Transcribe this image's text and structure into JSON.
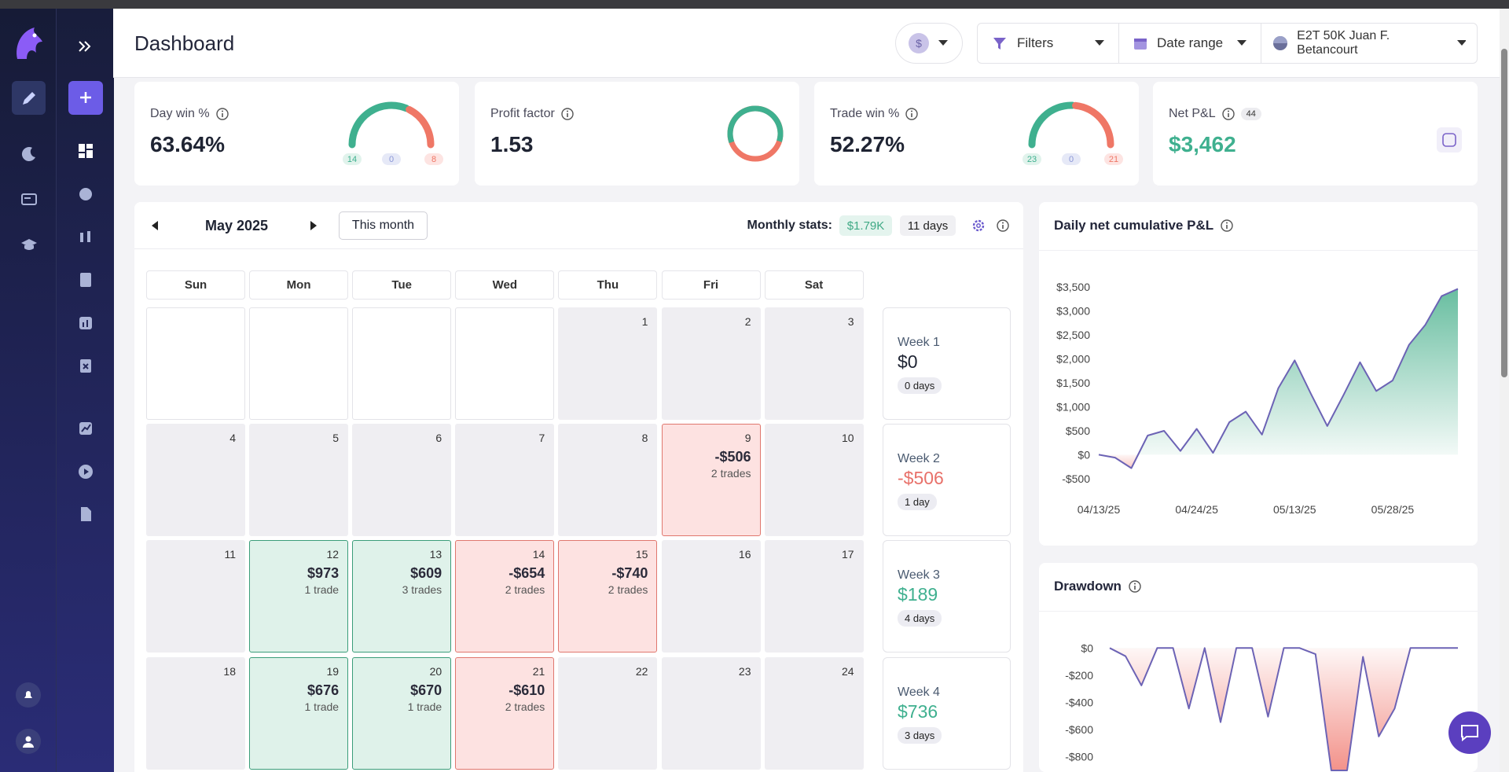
{
  "header": {
    "title": "Dashboard",
    "currency": "$",
    "filters": "Filters",
    "date_range": "Date range",
    "account": "E2T 50K Juan F. Betancourt"
  },
  "gauge_colors": [
    "#3fb08f",
    "#8a96d6",
    "#ef7766"
  ],
  "badge_colors": [
    "#e1f3ec",
    "#e6e9f7",
    "#fde4e2"
  ],
  "stats": [
    {
      "label": "Day win %",
      "value": "63.64%",
      "gauge": {
        "wins": 14,
        "breakeven": 0,
        "losses": 8
      }
    },
    {
      "label": "Profit factor",
      "value": 1.53
    },
    {
      "label": "Trade win %",
      "value": "52.27%",
      "gauge": {
        "wins": 23,
        "breakeven": 0,
        "losses": 21
      }
    },
    {
      "label": "Net P&L",
      "count": 44,
      "value": "$3,462",
      "value_color": "#3fb08f"
    }
  ],
  "calendar": {
    "month": "May 2025",
    "this_month": "This month",
    "stats_label": "Monthly stats:",
    "monthly_pnl": "$1.79K",
    "monthly_days": "11 days",
    "weekdays": [
      "Sun",
      "Mon",
      "Tue",
      "Wed",
      "Thu",
      "Fri",
      "Sat"
    ],
    "weeks": [
      {
        "days": [
          null,
          null,
          null,
          null,
          {
            "date": 1
          },
          {
            "date": 2
          },
          {
            "date": 3
          }
        ],
        "label": "Week 1",
        "pnl": "$0",
        "days_label": "0 days"
      },
      {
        "days": [
          {
            "date": 4
          },
          {
            "date": 5
          },
          {
            "date": 6
          },
          {
            "date": 7
          },
          {
            "date": 8
          },
          {
            "date": 9,
            "pnl": "-$506",
            "trades": "2 trades"
          },
          {
            "date": 10
          }
        ],
        "label": "Week 2",
        "pnl": "-$506",
        "days_label": "1 day"
      },
      {
        "days": [
          {
            "date": 11
          },
          {
            "date": 12,
            "pnl": "$973",
            "trades": "1 trade"
          },
          {
            "date": 13,
            "pnl": "$609",
            "trades": "3 trades"
          },
          {
            "date": 14,
            "pnl": "-$654",
            "trades": "2 trades"
          },
          {
            "date": 15,
            "pnl": "-$740",
            "trades": "2 trades"
          },
          {
            "date": 16
          },
          {
            "date": 17
          }
        ],
        "label": "Week 3",
        "pnl": "$189",
        "days_label": "4 days"
      },
      {
        "days": [
          {
            "date": 18
          },
          {
            "date": 19,
            "pnl": "$676",
            "trades": "1 trade"
          },
          {
            "date": 20,
            "pnl": "$670",
            "trades": "1 trade"
          },
          {
            "date": 21,
            "pnl": "-$610",
            "trades": "2 trades"
          },
          {
            "date": 22
          },
          {
            "date": 23
          },
          {
            "date": 24
          }
        ],
        "label": "Week 4",
        "pnl": "$736",
        "days_label": "3 days"
      }
    ]
  },
  "chart_data": [
    {
      "type": "area",
      "title": "Daily net cumulative P&L",
      "categories": [
        "04/13/25",
        null,
        null,
        null,
        null,
        null,
        "04/24/25",
        null,
        null,
        null,
        null,
        null,
        "05/13/25",
        null,
        null,
        null,
        null,
        null,
        "05/28/25",
        null,
        null,
        null,
        null
      ],
      "values": [
        0,
        -60,
        -280,
        400,
        500,
        80,
        540,
        40,
        680,
        900,
        420,
        1390,
        1970,
        1270,
        600,
        1250,
        1930,
        1330,
        1550,
        2290,
        2710,
        3310,
        3462
      ],
      "color": "#6c63b5",
      "positive_color": "#2fa57c",
      "negative_color": "#f0776d",
      "ylim": [
        -600,
        3600
      ],
      "yticks": [
        {
          "value": -500,
          "label": "-$500"
        },
        {
          "value": 0,
          "label": "$0"
        },
        {
          "value": 500,
          "label": "$500"
        },
        {
          "value": 1000,
          "label": "$1,000"
        },
        {
          "value": 1500,
          "label": "$1,500"
        },
        {
          "value": 2000,
          "label": "$2,000"
        },
        {
          "value": 2500,
          "label": "$2,500"
        },
        {
          "value": 3000,
          "label": "$3,000"
        },
        {
          "value": 3500,
          "label": "$3,500"
        }
      ]
    },
    {
      "type": "area",
      "title": "Drawdown",
      "values": [
        0,
        -60,
        -275,
        0,
        0,
        -445,
        0,
        -545,
        0,
        0,
        -505,
        0,
        0,
        -45,
        -900,
        -900,
        -65,
        -650,
        -445,
        0,
        0,
        0,
        0
      ],
      "color": "#6c63b5",
      "positive_color": "#2fa57c",
      "negative_color": "#f0776d",
      "ylim": [
        -900,
        100
      ],
      "yticks": [
        {
          "value": -800,
          "label": "-$800"
        },
        {
          "value": -600,
          "label": "-$600"
        },
        {
          "value": -400,
          "label": "-$400"
        },
        {
          "value": -200,
          "label": "-$200"
        },
        {
          "value": 0,
          "label": "$0"
        }
      ]
    }
  ]
}
